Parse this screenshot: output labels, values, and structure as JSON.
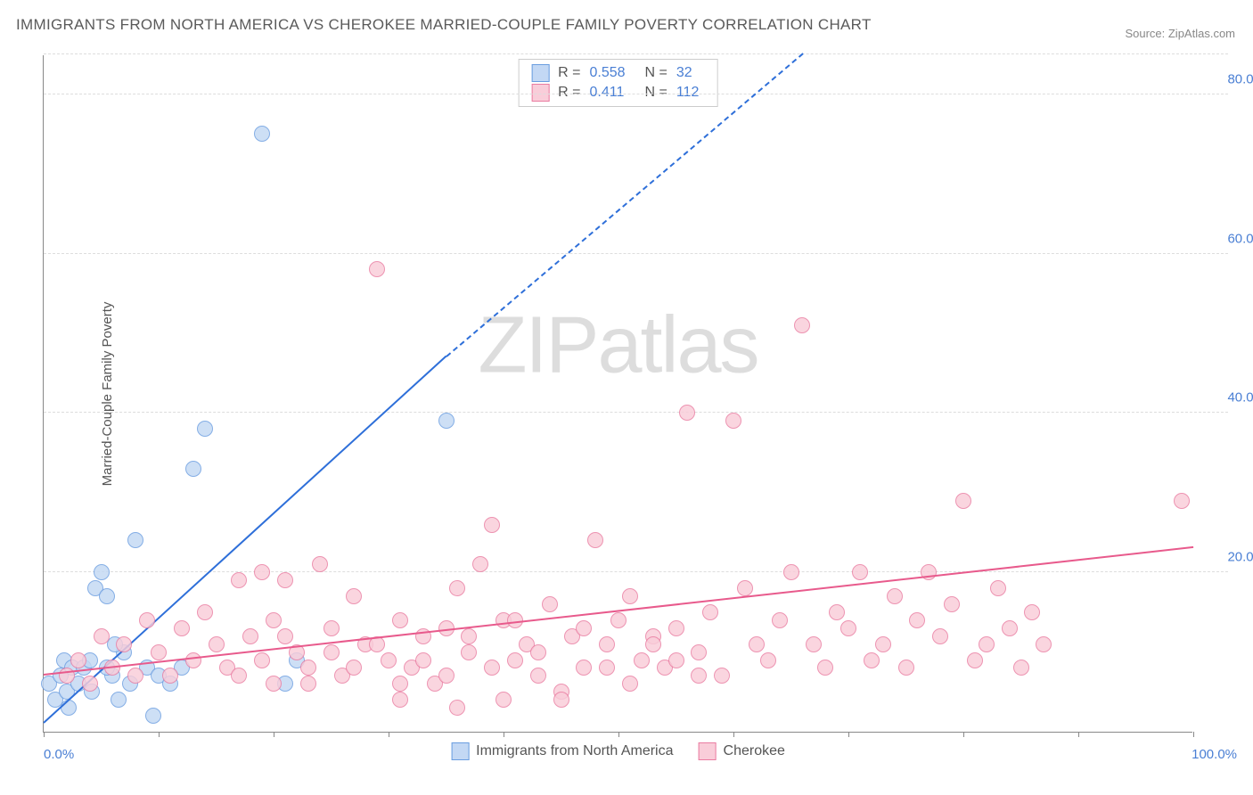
{
  "title": "IMMIGRANTS FROM NORTH AMERICA VS CHEROKEE MARRIED-COUPLE FAMILY POVERTY CORRELATION CHART",
  "source": "Source: ZipAtlas.com",
  "y_axis_label": "Married-Couple Family Poverty",
  "watermark_a": "ZIP",
  "watermark_b": "atlas",
  "chart": {
    "type": "scatter",
    "xlim": [
      0,
      100
    ],
    "ylim": [
      0,
      85
    ],
    "y_ticks": [
      20,
      40,
      60,
      80
    ],
    "y_tick_labels": [
      "20.0%",
      "40.0%",
      "60.0%",
      "80.0%"
    ],
    "x_tick_positions": [
      0,
      10,
      20,
      30,
      40,
      50,
      60,
      70,
      80,
      90,
      100
    ],
    "x_tick_labels": {
      "left": "0.0%",
      "right": "100.0%"
    },
    "background_color": "#ffffff",
    "grid_color": "#dddddd",
    "axis_color": "#888888",
    "marker_radius": 9,
    "series": [
      {
        "name": "Immigrants from North America",
        "fill": "#c3d8f4",
        "stroke": "#6a9de0",
        "line_color": "#2e6fd9",
        "stats": {
          "R_label": "R =",
          "R": "0.558",
          "N_label": "N =",
          "N": "32"
        },
        "trend": {
          "x1": 0,
          "y1": 1,
          "x2": 35,
          "y2": 47,
          "dash_x2": 66,
          "dash_y2": 85
        },
        "points": [
          [
            0.5,
            6
          ],
          [
            1,
            4
          ],
          [
            1.5,
            7
          ],
          [
            1.8,
            9
          ],
          [
            2,
            5
          ],
          [
            2.2,
            3
          ],
          [
            2.5,
            8
          ],
          [
            3,
            6
          ],
          [
            3.5,
            8
          ],
          [
            4,
            9
          ],
          [
            4.2,
            5
          ],
          [
            4.5,
            18
          ],
          [
            5,
            20
          ],
          [
            5.5,
            17
          ],
          [
            6,
            7
          ],
          [
            6.5,
            4
          ],
          [
            7,
            10
          ],
          [
            7.5,
            6
          ],
          [
            8,
            24
          ],
          [
            9,
            8
          ],
          [
            9.5,
            2
          ],
          [
            10,
            7
          ],
          [
            11,
            6
          ],
          [
            12,
            8
          ],
          [
            13,
            33
          ],
          [
            14,
            38
          ],
          [
            19,
            75
          ],
          [
            21,
            6
          ],
          [
            22,
            9
          ],
          [
            35,
            39
          ],
          [
            5.5,
            8
          ],
          [
            6.2,
            11
          ]
        ]
      },
      {
        "name": "Cherokee",
        "fill": "#f9cdd9",
        "stroke": "#ea7ca1",
        "line_color": "#e85a8c",
        "stats": {
          "R_label": "R =",
          "R": "0.411",
          "N_label": "N =",
          "N": "112"
        },
        "trend": {
          "x1": 0,
          "y1": 7,
          "x2": 100,
          "y2": 23
        },
        "points": [
          [
            2,
            7
          ],
          [
            3,
            9
          ],
          [
            4,
            6
          ],
          [
            5,
            12
          ],
          [
            6,
            8
          ],
          [
            7,
            11
          ],
          [
            8,
            7
          ],
          [
            9,
            14
          ],
          [
            10,
            10
          ],
          [
            11,
            7
          ],
          [
            12,
            13
          ],
          [
            13,
            9
          ],
          [
            14,
            15
          ],
          [
            15,
            11
          ],
          [
            16,
            8
          ],
          [
            17,
            19
          ],
          [
            18,
            12
          ],
          [
            19,
            20
          ],
          [
            20,
            14
          ],
          [
            20,
            6
          ],
          [
            21,
            19
          ],
          [
            22,
            10
          ],
          [
            23,
            8
          ],
          [
            24,
            21
          ],
          [
            25,
            13
          ],
          [
            26,
            7
          ],
          [
            27,
            17
          ],
          [
            28,
            11
          ],
          [
            29,
            58
          ],
          [
            30,
            9
          ],
          [
            31,
            14
          ],
          [
            32,
            8
          ],
          [
            33,
            12
          ],
          [
            34,
            6
          ],
          [
            35,
            13
          ],
          [
            36,
            18
          ],
          [
            37,
            10
          ],
          [
            38,
            21
          ],
          [
            39,
            26
          ],
          [
            40,
            14
          ],
          [
            41,
            9
          ],
          [
            42,
            11
          ],
          [
            43,
            7
          ],
          [
            44,
            16
          ],
          [
            45,
            5
          ],
          [
            46,
            12
          ],
          [
            47,
            8
          ],
          [
            48,
            24
          ],
          [
            49,
            11
          ],
          [
            50,
            14
          ],
          [
            51,
            17
          ],
          [
            52,
            9
          ],
          [
            53,
            12
          ],
          [
            54,
            8
          ],
          [
            55,
            13
          ],
          [
            56,
            40
          ],
          [
            57,
            10
          ],
          [
            58,
            15
          ],
          [
            59,
            7
          ],
          [
            60,
            39
          ],
          [
            61,
            18
          ],
          [
            62,
            11
          ],
          [
            63,
            9
          ],
          [
            64,
            14
          ],
          [
            65,
            20
          ],
          [
            66,
            51
          ],
          [
            67,
            11
          ],
          [
            68,
            8
          ],
          [
            69,
            15
          ],
          [
            70,
            13
          ],
          [
            71,
            20
          ],
          [
            72,
            9
          ],
          [
            73,
            11
          ],
          [
            74,
            17
          ],
          [
            75,
            8
          ],
          [
            76,
            14
          ],
          [
            77,
            20
          ],
          [
            78,
            12
          ],
          [
            79,
            16
          ],
          [
            80,
            29
          ],
          [
            81,
            9
          ],
          [
            82,
            11
          ],
          [
            83,
            18
          ],
          [
            84,
            13
          ],
          [
            85,
            8
          ],
          [
            86,
            15
          ],
          [
            87,
            11
          ],
          [
            17,
            7
          ],
          [
            19,
            9
          ],
          [
            21,
            12
          ],
          [
            23,
            6
          ],
          [
            25,
            10
          ],
          [
            27,
            8
          ],
          [
            29,
            11
          ],
          [
            31,
            6
          ],
          [
            33,
            9
          ],
          [
            35,
            7
          ],
          [
            37,
            12
          ],
          [
            39,
            8
          ],
          [
            41,
            14
          ],
          [
            43,
            10
          ],
          [
            45,
            4
          ],
          [
            47,
            13
          ],
          [
            49,
            8
          ],
          [
            51,
            6
          ],
          [
            53,
            11
          ],
          [
            55,
            9
          ],
          [
            57,
            7
          ],
          [
            31,
            4
          ],
          [
            36,
            3
          ],
          [
            99,
            29
          ],
          [
            40,
            4
          ]
        ]
      }
    ]
  }
}
